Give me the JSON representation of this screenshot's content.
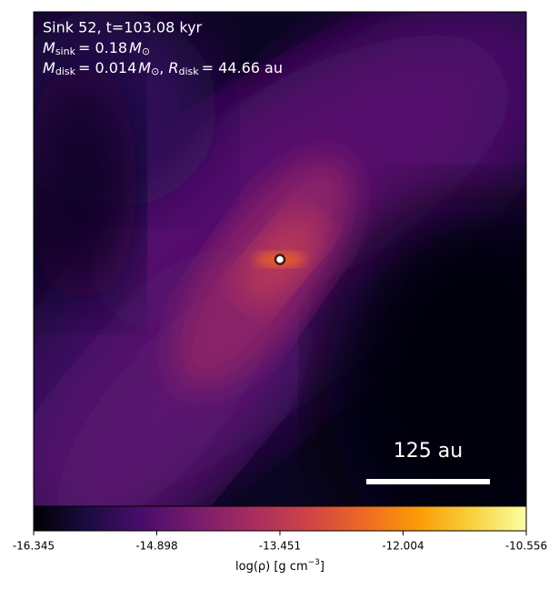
{
  "panel": {
    "title_line": "Sink 52, t=103.08 kyr",
    "mass_line": {
      "symbol": "M",
      "subscript": "sink",
      "equals": "= 0.18",
      "unit": "M",
      "unit_subscript": "⊙"
    },
    "disk_line": {
      "mass_symbol": "M",
      "mass_subscript": "disk",
      "mass_equals": "= 0.014",
      "mass_unit": "M",
      "mass_unit_subscript": "⊙",
      "separator": ",",
      "radius_symbol": "R",
      "radius_subscript": "disk",
      "radius_equals": "= 44.66 au"
    },
    "scale_bar_label": "125 au"
  },
  "colorbar": {
    "clim": [
      -16.345,
      -10.556
    ],
    "ticks": [
      -16.345,
      -14.898,
      -13.451,
      -12.004,
      -10.556
    ],
    "label_main": "log(ρ) [g cm",
    "label_superscript": "−3",
    "label_close": "]"
  }
}
